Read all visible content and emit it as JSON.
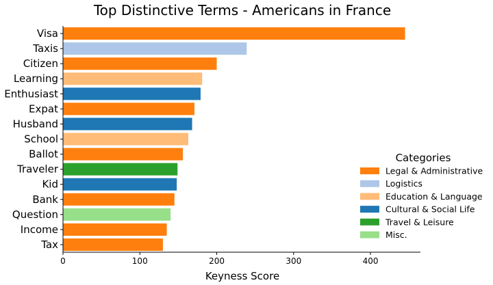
{
  "chart_data": {
    "type": "bar",
    "orientation": "horizontal",
    "title": "Top Distinctive Terms - Americans in France",
    "xlabel": "Keyness Score",
    "ylabel": "",
    "xlim": [
      0,
      465
    ],
    "xticks": [
      0,
      100,
      200,
      300,
      400
    ],
    "grid": false,
    "legend": {
      "title": "Categories",
      "placement": "right",
      "entries": [
        {
          "name": "Legal & Administrative",
          "color": "#ff7f0e"
        },
        {
          "name": "Logistics",
          "color": "#aec7e8"
        },
        {
          "name": "Education & Language",
          "color": "#ffbb78"
        },
        {
          "name": "Cultural & Social Life",
          "color": "#1f77b4"
        },
        {
          "name": "Travel & Leisure",
          "color": "#2ca02c"
        },
        {
          "name": "Misc.",
          "color": "#98df8a"
        }
      ]
    },
    "bars": [
      {
        "term": "Visa",
        "value": 445,
        "category": "Legal & Administrative"
      },
      {
        "term": "Taxis",
        "value": 239,
        "category": "Logistics"
      },
      {
        "term": "Citizen",
        "value": 200,
        "category": "Legal & Administrative"
      },
      {
        "term": "Learning",
        "value": 181,
        "category": "Education & Language"
      },
      {
        "term": "Enthusiast",
        "value": 179,
        "category": "Cultural & Social Life"
      },
      {
        "term": "Expat",
        "value": 171,
        "category": "Legal & Administrative"
      },
      {
        "term": "Husband",
        "value": 168,
        "category": "Cultural & Social Life"
      },
      {
        "term": "School",
        "value": 163,
        "category": "Education & Language"
      },
      {
        "term": "Ballot",
        "value": 156,
        "category": "Legal & Administrative"
      },
      {
        "term": "Traveler",
        "value": 149,
        "category": "Travel & Leisure"
      },
      {
        "term": "Kid",
        "value": 148,
        "category": "Cultural & Social Life"
      },
      {
        "term": "Bank",
        "value": 145,
        "category": "Legal & Administrative"
      },
      {
        "term": "Question",
        "value": 140,
        "category": "Misc."
      },
      {
        "term": "Income",
        "value": 135,
        "category": "Legal & Administrative"
      },
      {
        "term": "Tax",
        "value": 130,
        "category": "Legal & Administrative"
      }
    ]
  }
}
